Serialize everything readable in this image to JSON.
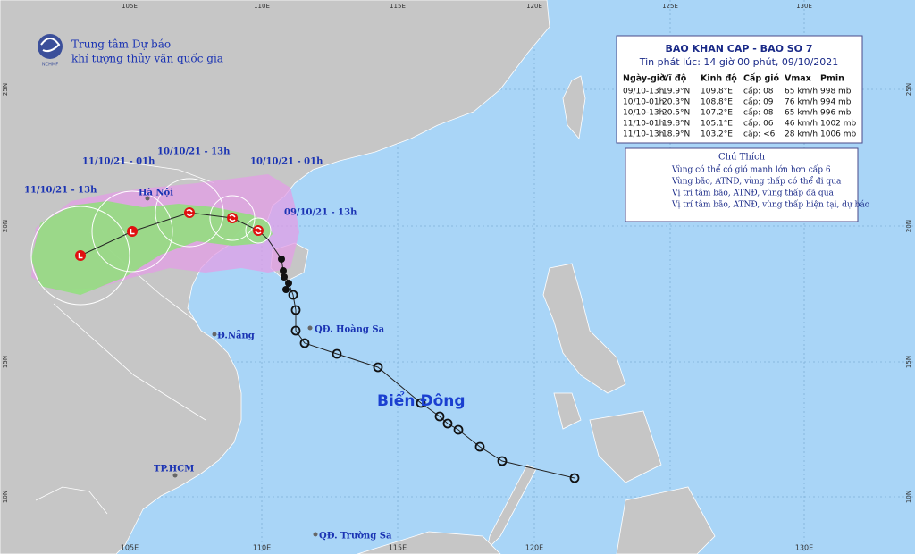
{
  "header": {
    "logo": "NCHMF",
    "line1": "Trung tâm Dự báo",
    "line2": "khí tượng thủy văn quốc gia"
  },
  "axes": {
    "top": [
      "105E",
      "110E",
      "115E",
      "120E",
      "125E",
      "130E"
    ],
    "bottom": [
      "105E",
      "110E",
      "115E",
      "120E",
      "130E"
    ],
    "left": [
      "25N",
      "20N",
      "15N",
      "10N"
    ],
    "right": [
      "25N",
      "20N",
      "15N",
      "10N"
    ]
  },
  "bulletin": {
    "title": "BAO KHAN CAP - BAO SO 7",
    "issued": "Tin phát lúc: 14 giờ 00 phút, 09/10/2021",
    "columns": [
      "Ngày-giờ",
      "Vĩ độ",
      "Kinh độ",
      "Cấp gió",
      "Vmax",
      "Pmin"
    ],
    "rows": [
      [
        "09/10-13h",
        "19.9°N",
        "109.8°E",
        "cấp: 08",
        "65 km/h",
        "998 mb"
      ],
      [
        "10/10-01h",
        "20.3°N",
        "108.8°E",
        "cấp: 09",
        "76 km/h",
        "994 mb"
      ],
      [
        "10/10-13h",
        "20.5°N",
        "107.2°E",
        "cấp: 08",
        "65 km/h",
        "996 mb"
      ],
      [
        "11/10-01h",
        "19.8°N",
        "105.1°E",
        "cấp: 06",
        "46 km/h",
        "1002 mb"
      ],
      [
        "11/10-13h",
        "18.9°N",
        "103.2°E",
        "cấp: <6",
        "28 km/h",
        "1006 mb"
      ]
    ]
  },
  "legend": {
    "title": "Chú Thích",
    "items": [
      "Vùng có thể có gió mạnh lớn hơn cấp 6",
      "Vùng bão, ATNĐ, vùng thấp có thể đi qua",
      "Vị trí tâm bão, ATNĐ, vùng thấp đã qua",
      "Vị trí tâm bão, ATNĐ, vùng thấp hiện tại, dự báo"
    ]
  },
  "labels": {
    "times": [
      "11/10/21 - 13h",
      "11/10/21 - 01h",
      "10/10/21 - 13h",
      "10/10/21 - 01h",
      "09/10/21 - 13h"
    ],
    "places": [
      "Hà Nội",
      "Đ.Nẵng",
      "QĐ. Hoàng Sa",
      "TP.HCM",
      "QĐ. Trường Sa"
    ],
    "sea": "Biển Đông"
  }
}
